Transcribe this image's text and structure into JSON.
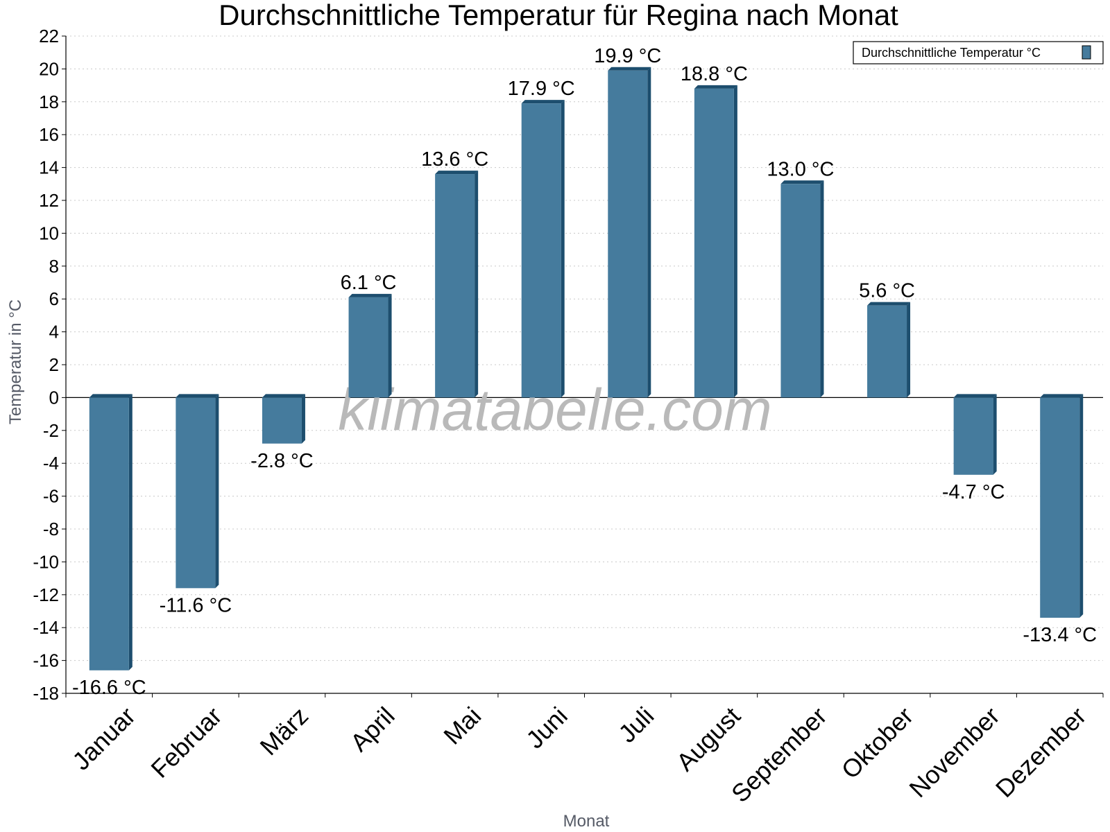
{
  "chart_data": {
    "type": "bar",
    "title": "Durchschnittliche Temperatur für Regina nach Monat",
    "xlabel": "Monat",
    "ylabel": "Temperatur in °C",
    "ylim": [
      -18,
      22
    ],
    "ytick_step": 2,
    "grid": true,
    "legend_position": "top-right",
    "categories": [
      "Januar",
      "Februar",
      "März",
      "April",
      "Mai",
      "Juni",
      "Juli",
      "August",
      "September",
      "Oktober",
      "November",
      "Dezember"
    ],
    "series": [
      {
        "name": "Durchschnittliche Temperatur °C",
        "values": [
          -16.6,
          -11.6,
          -2.8,
          6.1,
          13.6,
          17.9,
          19.9,
          18.8,
          13.0,
          5.6,
          -4.7,
          -13.4
        ],
        "labels": [
          "-16.6 °C",
          "-11.6 °C",
          "-2.8 °C",
          "6.1 °C",
          "13.6 °C",
          "17.9 °C",
          "19.9 °C",
          "18.8 °C",
          "13.0 °C",
          "5.6 °C",
          "-4.7 °C",
          "-13.4 °C"
        ],
        "color": "#457b9d",
        "shade_color": "#1d4e6e"
      }
    ],
    "watermark": "klimatabelle.com"
  }
}
